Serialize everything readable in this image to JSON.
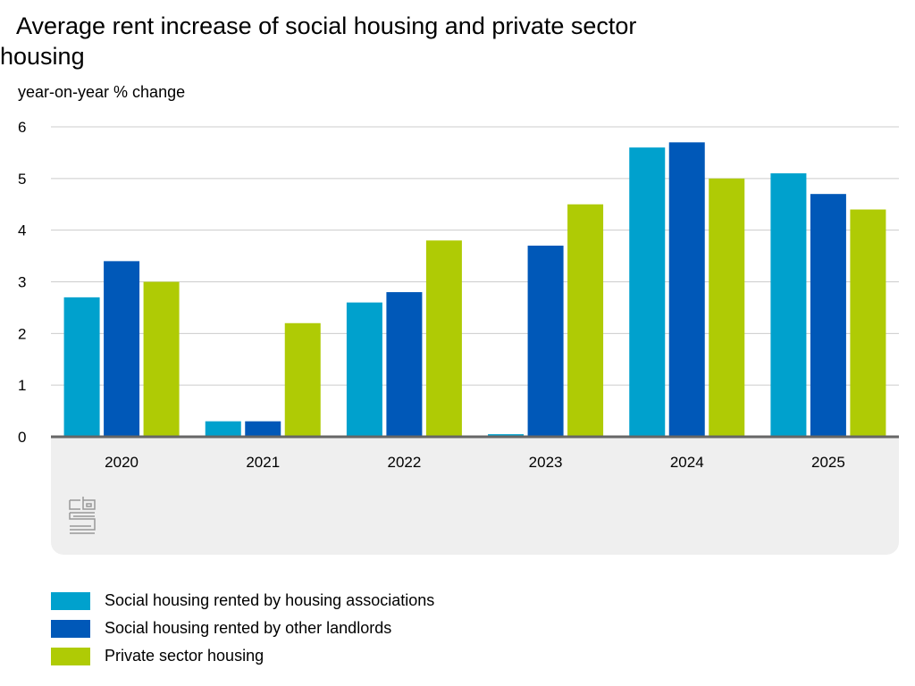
{
  "chart_data": {
    "type": "bar",
    "title": "Average rent increase of social housing and private sector housing",
    "ylabel": "year-on-year % change",
    "xlabel": "",
    "ylim": [
      0,
      6
    ],
    "yticks": [
      "0",
      "1",
      "2",
      "3",
      "4",
      "5",
      "6"
    ],
    "grid": true,
    "legend_position": "bottom",
    "categories": [
      "2020",
      "2021",
      "2022",
      "2023",
      "2024",
      "2025"
    ],
    "series": [
      {
        "name": "Social housing rented by housing associations",
        "color": "#00a1cd",
        "values": [
          2.7,
          0.3,
          2.6,
          0.05,
          5.6,
          5.1
        ]
      },
      {
        "name": "Social housing rented by other landlords",
        "color": "#0058b8",
        "values": [
          3.4,
          0.3,
          2.8,
          3.7,
          5.7,
          4.7
        ]
      },
      {
        "name": "Private sector housing",
        "color": "#afcb05",
        "values": [
          3.0,
          2.2,
          3.8,
          4.5,
          5.0,
          4.4
        ]
      }
    ]
  },
  "logo": "cbs"
}
